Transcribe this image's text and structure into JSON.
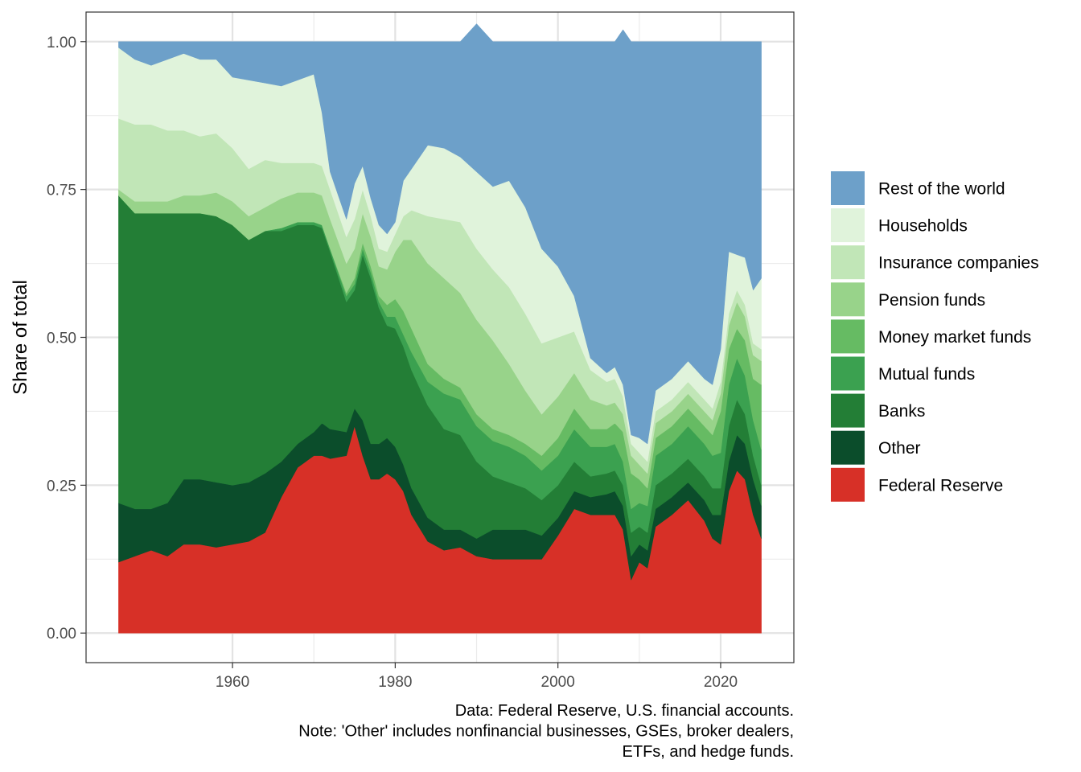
{
  "chart_data": {
    "type": "area",
    "stacked": true,
    "xlabel": "",
    "ylabel": "Share of total",
    "xlim": [
      1942,
      2029
    ],
    "ylim": [
      -0.05,
      1.05
    ],
    "x_ticks": [
      1960,
      1980,
      2000,
      2020
    ],
    "y_ticks": [
      0,
      0.25,
      0.5,
      0.75,
      1.0
    ],
    "y_tick_labels": [
      "0.00",
      "0.25",
      "0.50",
      "0.75",
      "1.00"
    ],
    "grid": true,
    "legend_position": "right",
    "caption": [
      "Data: Federal Reserve, U.S. financial accounts.",
      "Note: 'Other' includes nonfinancial businesses, GSEs, broker dealers,",
      "ETFs, and hedge funds."
    ],
    "x": [
      1946,
      1948,
      1950,
      1952,
      1954,
      1956,
      1958,
      1960,
      1962,
      1964,
      1966,
      1968,
      1970,
      1971,
      1972,
      1974,
      1975,
      1976,
      1977,
      1978,
      1979,
      1980,
      1981,
      1982,
      1984,
      1986,
      1988,
      1990,
      1992,
      1994,
      1996,
      1998,
      2000,
      2002,
      2004,
      2006,
      2007,
      2008,
      2009,
      2010,
      2011,
      2012,
      2014,
      2016,
      2018,
      2019,
      2020,
      2021,
      2022,
      2023,
      2024,
      2025
    ],
    "series": [
      {
        "name": "Federal Reserve",
        "color": "#d73027",
        "values": [
          0.12,
          0.13,
          0.14,
          0.13,
          0.15,
          0.15,
          0.145,
          0.15,
          0.155,
          0.17,
          0.23,
          0.28,
          0.3,
          0.3,
          0.295,
          0.3,
          0.35,
          0.3,
          0.26,
          0.26,
          0.27,
          0.26,
          0.24,
          0.2,
          0.155,
          0.14,
          0.145,
          0.13,
          0.125,
          0.125,
          0.125,
          0.125,
          0.165,
          0.21,
          0.2,
          0.2,
          0.2,
          0.175,
          0.09,
          0.12,
          0.11,
          0.18,
          0.2,
          0.225,
          0.19,
          0.16,
          0.15,
          0.24,
          0.275,
          0.26,
          0.2,
          0.16
        ]
      },
      {
        "name": "Other",
        "color": "#0b4d2b",
        "values": [
          0.1,
          0.08,
          0.07,
          0.09,
          0.11,
          0.11,
          0.11,
          0.1,
          0.1,
          0.1,
          0.06,
          0.04,
          0.04,
          0.055,
          0.05,
          0.04,
          0.03,
          0.06,
          0.06,
          0.06,
          0.06,
          0.055,
          0.045,
          0.045,
          0.04,
          0.035,
          0.03,
          0.03,
          0.05,
          0.05,
          0.05,
          0.04,
          0.03,
          0.03,
          0.03,
          0.035,
          0.04,
          0.04,
          0.04,
          0.03,
          0.03,
          0.03,
          0.03,
          0.03,
          0.035,
          0.04,
          0.05,
          0.05,
          0.06,
          0.06,
          0.06,
          0.055
        ]
      },
      {
        "name": "Banks",
        "color": "#237e36",
        "values": [
          0.52,
          0.5,
          0.5,
          0.49,
          0.45,
          0.45,
          0.45,
          0.44,
          0.41,
          0.41,
          0.39,
          0.37,
          0.35,
          0.33,
          0.3,
          0.22,
          0.2,
          0.28,
          0.28,
          0.23,
          0.19,
          0.2,
          0.2,
          0.2,
          0.19,
          0.17,
          0.16,
          0.13,
          0.09,
          0.08,
          0.07,
          0.06,
          0.055,
          0.05,
          0.035,
          0.035,
          0.035,
          0.035,
          0.04,
          0.03,
          0.03,
          0.04,
          0.04,
          0.04,
          0.04,
          0.045,
          0.045,
          0.06,
          0.06,
          0.05,
          0.04,
          0.035
        ]
      },
      {
        "name": "Mutual funds",
        "color": "#3ba150",
        "values": [
          0.0,
          0.0,
          0.0,
          0.0,
          0.0,
          0.0,
          0.0,
          0.0,
          0.0,
          0.0,
          0.005,
          0.005,
          0.005,
          0.005,
          0.005,
          0.01,
          0.01,
          0.01,
          0.01,
          0.01,
          0.015,
          0.02,
          0.02,
          0.03,
          0.04,
          0.06,
          0.06,
          0.06,
          0.06,
          0.06,
          0.055,
          0.05,
          0.05,
          0.055,
          0.05,
          0.045,
          0.045,
          0.04,
          0.04,
          0.04,
          0.045,
          0.05,
          0.05,
          0.055,
          0.055,
          0.055,
          0.06,
          0.07,
          0.07,
          0.065,
          0.06,
          0.06
        ]
      },
      {
        "name": "Money market funds",
        "color": "#66bb63",
        "values": [
          0.0,
          0.0,
          0.0,
          0.0,
          0.0,
          0.0,
          0.0,
          0.0,
          0.0,
          0.0,
          0.0,
          0.0,
          0.0,
          0.0,
          0.0,
          0.005,
          0.01,
          0.01,
          0.01,
          0.01,
          0.02,
          0.03,
          0.04,
          0.04,
          0.03,
          0.025,
          0.02,
          0.02,
          0.02,
          0.02,
          0.02,
          0.025,
          0.03,
          0.035,
          0.03,
          0.03,
          0.035,
          0.05,
          0.06,
          0.04,
          0.03,
          0.03,
          0.03,
          0.03,
          0.03,
          0.035,
          0.07,
          0.06,
          0.05,
          0.06,
          0.07,
          0.11
        ]
      },
      {
        "name": "Pension funds",
        "color": "#98d38a",
        "values": [
          0.01,
          0.02,
          0.02,
          0.02,
          0.03,
          0.03,
          0.04,
          0.04,
          0.04,
          0.04,
          0.05,
          0.05,
          0.05,
          0.05,
          0.05,
          0.05,
          0.05,
          0.05,
          0.05,
          0.05,
          0.06,
          0.08,
          0.12,
          0.15,
          0.17,
          0.17,
          0.16,
          0.16,
          0.15,
          0.12,
          0.09,
          0.07,
          0.07,
          0.06,
          0.05,
          0.04,
          0.035,
          0.03,
          0.03,
          0.025,
          0.025,
          0.025,
          0.025,
          0.025,
          0.025,
          0.025,
          0.03,
          0.04,
          0.045,
          0.04,
          0.04,
          0.04
        ]
      },
      {
        "name": "Insurance companies",
        "color": "#c1e6b7",
        "values": [
          0.12,
          0.13,
          0.13,
          0.12,
          0.11,
          0.1,
          0.1,
          0.09,
          0.08,
          0.08,
          0.06,
          0.05,
          0.05,
          0.05,
          0.05,
          0.045,
          0.05,
          0.04,
          0.035,
          0.03,
          0.03,
          0.03,
          0.04,
          0.05,
          0.08,
          0.1,
          0.12,
          0.12,
          0.12,
          0.13,
          0.13,
          0.12,
          0.1,
          0.07,
          0.05,
          0.04,
          0.04,
          0.03,
          0.02,
          0.02,
          0.02,
          0.02,
          0.02,
          0.02,
          0.02,
          0.02,
          0.02,
          0.02,
          0.02,
          0.02,
          0.02,
          0.02
        ]
      },
      {
        "name": "Households",
        "color": "#e0f3db",
        "values": [
          0.12,
          0.11,
          0.1,
          0.12,
          0.13,
          0.13,
          0.125,
          0.12,
          0.15,
          0.13,
          0.13,
          0.14,
          0.15,
          0.09,
          0.03,
          0.03,
          0.06,
          0.04,
          0.03,
          0.04,
          0.03,
          0.02,
          0.06,
          0.07,
          0.12,
          0.12,
          0.11,
          0.13,
          0.14,
          0.18,
          0.18,
          0.16,
          0.12,
          0.06,
          0.02,
          0.015,
          0.02,
          0.02,
          0.015,
          0.025,
          0.03,
          0.035,
          0.035,
          0.035,
          0.035,
          0.04,
          0.055,
          0.105,
          0.06,
          0.08,
          0.09,
          0.12
        ]
      },
      {
        "name": "Rest of the world",
        "color": "#6da0c9",
        "values": [
          0.01,
          0.03,
          0.04,
          0.03,
          0.02,
          0.03,
          0.03,
          0.06,
          0.065,
          0.07,
          0.075,
          0.065,
          0.055,
          0.12,
          0.22,
          0.3,
          0.24,
          0.21,
          0.265,
          0.31,
          0.325,
          0.305,
          0.235,
          0.215,
          0.175,
          0.18,
          0.195,
          0.25,
          0.245,
          0.235,
          0.28,
          0.35,
          0.38,
          0.43,
          0.535,
          0.56,
          0.55,
          0.6,
          0.665,
          0.67,
          0.68,
          0.59,
          0.57,
          0.54,
          0.57,
          0.58,
          0.52,
          0.355,
          0.36,
          0.365,
          0.42,
          0.4
        ]
      }
    ]
  }
}
